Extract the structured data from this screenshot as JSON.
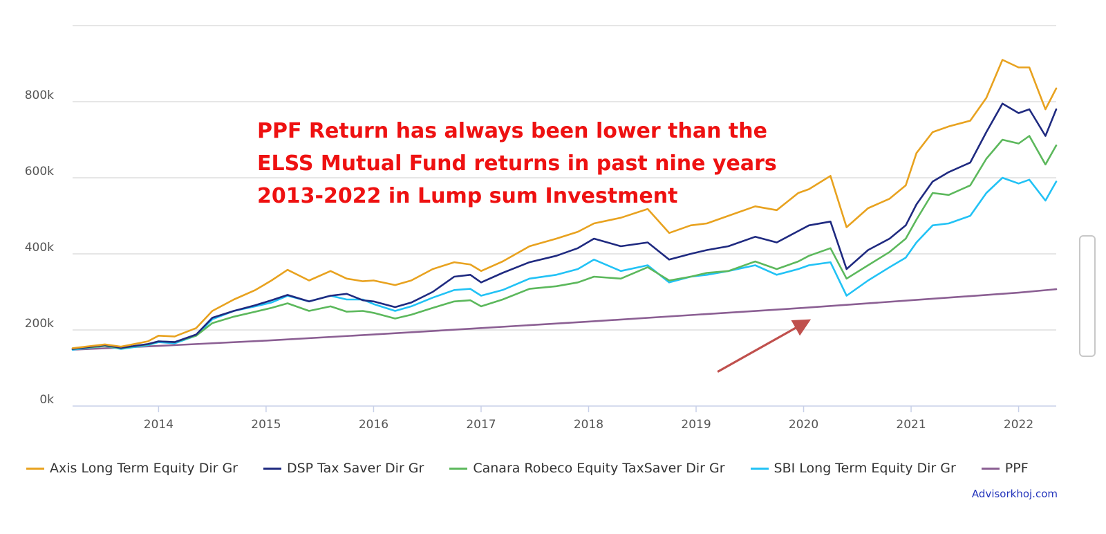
{
  "chart_data": {
    "type": "line",
    "title": "",
    "xlabel": "",
    "ylabel": "",
    "ylim": [
      0,
      1000000
    ],
    "y_ticks": [
      0,
      200000,
      400000,
      600000,
      800000
    ],
    "y_tick_labels": [
      "0k",
      "200k",
      "400k",
      "600k",
      "800k"
    ],
    "xlim": [
      2013.2,
      2022.35
    ],
    "x_ticks": [
      2014,
      2015,
      2016,
      2017,
      2018,
      2019,
      2020,
      2021,
      2022
    ],
    "x_tick_labels": [
      "2014",
      "2015",
      "2016",
      "2017",
      "2018",
      "2019",
      "2020",
      "2021",
      "2022"
    ],
    "grid": true,
    "legend_position": "bottom",
    "series": [
      {
        "name": "Axis Long Term Equity Dir Gr",
        "color": "#e8a21f",
        "x": [
          2013.2,
          2013.5,
          2013.65,
          2013.9,
          2014.0,
          2014.15,
          2014.35,
          2014.5,
          2014.7,
          2014.9,
          2015.05,
          2015.2,
          2015.4,
          2015.6,
          2015.75,
          2015.9,
          2016.0,
          2016.2,
          2016.35,
          2016.55,
          2016.75,
          2016.9,
          2017.0,
          2017.2,
          2017.45,
          2017.7,
          2017.9,
          2018.05,
          2018.3,
          2018.55,
          2018.75,
          2018.95,
          2019.1,
          2019.3,
          2019.55,
          2019.75,
          2019.95,
          2020.05,
          2020.25,
          2020.4,
          2020.6,
          2020.8,
          2020.95,
          2021.05,
          2021.2,
          2021.35,
          2021.55,
          2021.7,
          2021.85,
          2022.0,
          2022.1,
          2022.25,
          2022.35
        ],
        "values": [
          152000,
          162000,
          156000,
          170000,
          185000,
          183000,
          205000,
          250000,
          280000,
          305000,
          330000,
          358000,
          330000,
          355000,
          335000,
          328000,
          330000,
          318000,
          330000,
          360000,
          378000,
          372000,
          355000,
          380000,
          420000,
          440000,
          458000,
          480000,
          495000,
          518000,
          455000,
          475000,
          480000,
          500000,
          525000,
          515000,
          560000,
          570000,
          605000,
          470000,
          520000,
          545000,
          580000,
          665000,
          720000,
          735000,
          750000,
          810000,
          910000,
          890000,
          890000,
          780000,
          835000
        ]
      },
      {
        "name": "DSP Tax Saver Dir Gr",
        "color": "#1f2a80",
        "x": [
          2013.2,
          2013.5,
          2013.65,
          2013.9,
          2014.0,
          2014.15,
          2014.35,
          2014.5,
          2014.7,
          2014.9,
          2015.05,
          2015.2,
          2015.4,
          2015.6,
          2015.75,
          2015.9,
          2016.0,
          2016.2,
          2016.35,
          2016.55,
          2016.75,
          2016.9,
          2017.0,
          2017.2,
          2017.45,
          2017.7,
          2017.9,
          2018.05,
          2018.3,
          2018.55,
          2018.75,
          2018.95,
          2019.1,
          2019.3,
          2019.55,
          2019.75,
          2019.95,
          2020.05,
          2020.25,
          2020.4,
          2020.6,
          2020.8,
          2020.95,
          2021.05,
          2021.2,
          2021.35,
          2021.55,
          2021.7,
          2021.85,
          2022.0,
          2022.1,
          2022.25,
          2022.35
        ],
        "values": [
          150000,
          160000,
          153000,
          163000,
          170000,
          168000,
          188000,
          232000,
          250000,
          265000,
          278000,
          292000,
          275000,
          290000,
          295000,
          278000,
          275000,
          260000,
          272000,
          300000,
          340000,
          345000,
          325000,
          350000,
          378000,
          395000,
          415000,
          440000,
          420000,
          430000,
          385000,
          400000,
          410000,
          420000,
          445000,
          430000,
          460000,
          475000,
          485000,
          360000,
          410000,
          440000,
          475000,
          530000,
          590000,
          615000,
          640000,
          720000,
          795000,
          770000,
          780000,
          710000,
          780000
        ]
      },
      {
        "name": "Canara Robeco Equity TaxSaver Dir Gr",
        "color": "#5cb85c",
        "x": [
          2013.2,
          2013.5,
          2013.65,
          2013.9,
          2014.0,
          2014.15,
          2014.35,
          2014.5,
          2014.7,
          2014.9,
          2015.05,
          2015.2,
          2015.4,
          2015.6,
          2015.75,
          2015.9,
          2016.0,
          2016.2,
          2016.35,
          2016.55,
          2016.75,
          2016.9,
          2017.0,
          2017.2,
          2017.45,
          2017.7,
          2017.9,
          2018.05,
          2018.3,
          2018.55,
          2018.75,
          2018.95,
          2019.1,
          2019.3,
          2019.55,
          2019.75,
          2019.95,
          2020.05,
          2020.25,
          2020.4,
          2020.6,
          2020.8,
          2020.95,
          2021.05,
          2021.2,
          2021.35,
          2021.55,
          2021.7,
          2021.85,
          2022.0,
          2022.1,
          2022.25,
          2022.35
        ],
        "values": [
          150000,
          158000,
          152000,
          162000,
          170000,
          168000,
          185000,
          218000,
          235000,
          248000,
          258000,
          270000,
          250000,
          262000,
          248000,
          250000,
          245000,
          230000,
          240000,
          258000,
          275000,
          278000,
          262000,
          280000,
          308000,
          315000,
          325000,
          340000,
          335000,
          365000,
          330000,
          340000,
          350000,
          355000,
          380000,
          360000,
          380000,
          395000,
          415000,
          335000,
          370000,
          405000,
          440000,
          490000,
          560000,
          555000,
          580000,
          650000,
          700000,
          690000,
          710000,
          635000,
          685000
        ]
      },
      {
        "name": "SBI Long Term Equity Dir Gr",
        "color": "#22c2f5",
        "x": [
          2013.2,
          2013.5,
          2013.65,
          2013.9,
          2014.0,
          2014.15,
          2014.35,
          2014.5,
          2014.7,
          2014.9,
          2015.05,
          2015.2,
          2015.4,
          2015.6,
          2015.75,
          2015.9,
          2016.0,
          2016.2,
          2016.35,
          2016.55,
          2016.75,
          2016.9,
          2017.0,
          2017.2,
          2017.45,
          2017.7,
          2017.9,
          2018.05,
          2018.3,
          2018.55,
          2018.75,
          2018.95,
          2019.1,
          2019.3,
          2019.55,
          2019.75,
          2019.95,
          2020.05,
          2020.25,
          2020.4,
          2020.6,
          2020.8,
          2020.95,
          2021.05,
          2021.2,
          2021.35,
          2021.55,
          2021.7,
          2021.85,
          2022.0,
          2022.1,
          2022.25,
          2022.35
        ],
        "values": [
          148000,
          158000,
          150000,
          160000,
          168000,
          165000,
          185000,
          228000,
          250000,
          262000,
          272000,
          290000,
          275000,
          290000,
          280000,
          280000,
          268000,
          250000,
          262000,
          285000,
          305000,
          308000,
          290000,
          305000,
          335000,
          345000,
          360000,
          385000,
          355000,
          370000,
          325000,
          340000,
          345000,
          355000,
          370000,
          345000,
          360000,
          370000,
          378000,
          290000,
          330000,
          365000,
          390000,
          430000,
          475000,
          480000,
          500000,
          560000,
          600000,
          585000,
          595000,
          540000,
          590000
        ]
      },
      {
        "name": "PPF",
        "color": "#8b5f93",
        "x": [
          2013.2,
          2014.0,
          2015.0,
          2016.0,
          2017.0,
          2018.0,
          2019.0,
          2020.0,
          2021.0,
          2022.0,
          2022.35
        ],
        "values": [
          148000,
          158000,
          172000,
          188000,
          205000,
          222000,
          240000,
          258000,
          278000,
          298000,
          307000
        ]
      }
    ],
    "annotations": {
      "text_lines": [
        "PPF Return has always been lower than the",
        "ELSS Mutual Fund returns in past nine years",
        "2013-2022 in Lump sum Investment"
      ],
      "arrow": {
        "from": [
          2019.2,
          90000
        ],
        "to": [
          2020.05,
          225000
        ],
        "color": "#c0504d"
      }
    }
  },
  "watermark": "Advisorkhoj.com",
  "colors": {
    "grid": "#d8d8d8",
    "axis": "#c8d0e8",
    "annotation_text": "#ee1111",
    "watermark_text": "#2233bb"
  }
}
